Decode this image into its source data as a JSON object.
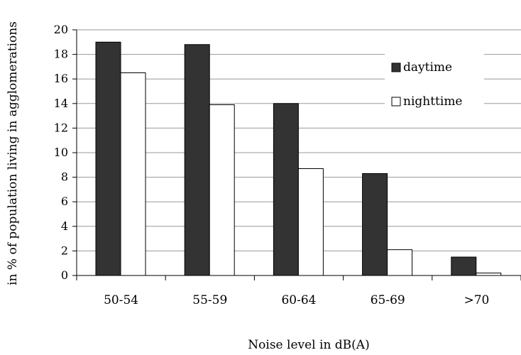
{
  "chart_data": {
    "type": "bar",
    "title": "",
    "xlabel": "Noise level in dB(A)",
    "ylabel": "in % of population living in agglomerations",
    "categories": [
      "50-54",
      "55-59",
      "60-64",
      "65-69",
      ">70"
    ],
    "series": [
      {
        "name": "daytime",
        "values": [
          19.0,
          18.8,
          14.0,
          8.3,
          1.5
        ],
        "color": "#333333"
      },
      {
        "name": "nighttime",
        "values": [
          16.5,
          13.9,
          8.7,
          2.1,
          0.2
        ],
        "color": "#ffffff"
      }
    ],
    "ylim": [
      0,
      20
    ],
    "yticks": [
      "0",
      "2",
      "4",
      "6",
      "8",
      "10",
      "12",
      "14",
      "16",
      "18",
      "20"
    ],
    "grid": true,
    "legend_position": "right"
  }
}
